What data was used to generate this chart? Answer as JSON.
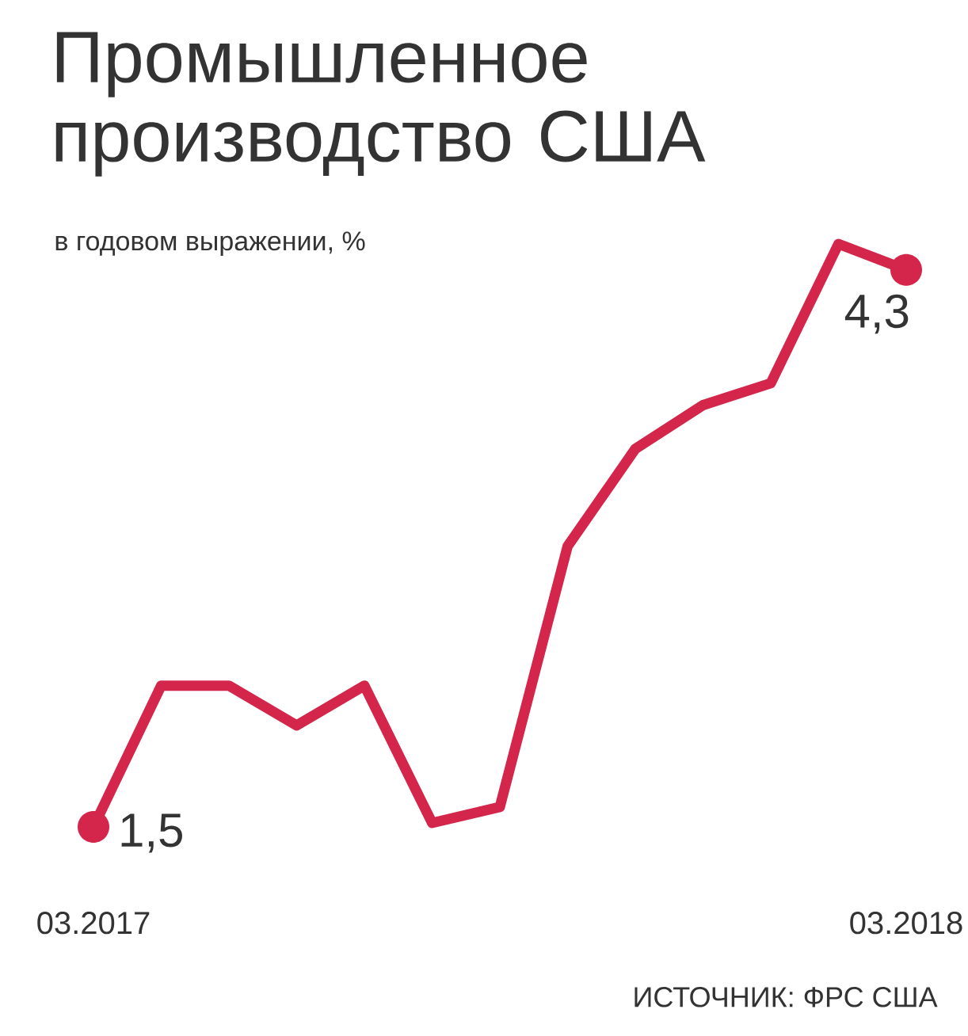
{
  "chart_data": {
    "type": "line",
    "title": "Промышленное производство США",
    "subtitle": "в годовом выражении, %",
    "annotations": [
      "ИСТОЧНИК: ФРС США"
    ],
    "categories": [
      "03.2017",
      null,
      null,
      null,
      null,
      null,
      null,
      null,
      null,
      null,
      null,
      null,
      "03.2018"
    ],
    "series": [
      {
        "color": "#d4254b",
        "values": [
          1.5,
          2.21,
          2.21,
          2.01,
          2.21,
          1.52,
          1.6,
          2.91,
          3.4,
          3.62,
          3.73,
          4.43,
          4.3
        ],
        "value_labels": [
          "1,5",
          null,
          null,
          null,
          null,
          null,
          null,
          null,
          null,
          null,
          null,
          null,
          "4,3"
        ]
      }
    ]
  }
}
